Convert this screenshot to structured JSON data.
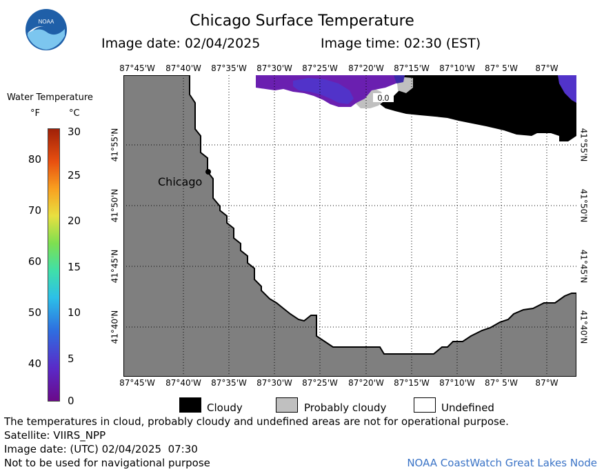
{
  "header": {
    "title": "Chicago Surface Temperature",
    "image_date": "Image date: 02/04/2025",
    "image_time": "Image time: 02:30 (EST)"
  },
  "logo": {
    "text": "NOAA",
    "color_blue": "#1f5fa8",
    "color_light": "#7cc6ef"
  },
  "map": {
    "longitude_labels": [
      "87°45'W",
      "87°40'W",
      "87°35'W",
      "87°30'W",
      "87°25'W",
      "87°20'W",
      "87°15'W",
      "87°10'W",
      "87° 5'W",
      "87°W"
    ],
    "latitude_labels": [
      "41°55'N",
      "41°50'N",
      "41°45'N",
      "41°40'N"
    ],
    "city": "Chicago",
    "temperature_label": "0.0",
    "colors": {
      "land": "#7f7f7f",
      "cloudy": "#000000",
      "probably_cloudy": "#c0c0c0",
      "undefined": "#ffffff",
      "cold_water_1": "#6a1fb0",
      "cold_water_2": "#5133c9"
    }
  },
  "scale": {
    "title": "Water Temperature",
    "unit_f": "°F",
    "unit_c": "°C",
    "fahrenheit_ticks": [
      "80",
      "70",
      "60",
      "50",
      "40"
    ],
    "celsius_ticks": [
      "30",
      "25",
      "20",
      "15",
      "10",
      "5",
      "0"
    ]
  },
  "legend": {
    "cloudy": "Cloudy",
    "probably_cloudy": "Probably cloudy",
    "undefined": "Undefined"
  },
  "footer": {
    "disclaimer": "The temperatures in cloud, probably cloudy and undefined areas are not for operational purpose.",
    "satellite": "Satellite: VIIRS_NPP",
    "image_date_utc": "Image date: (UTC) 02/04/2025  07:30",
    "navigation_warning": "Not to be used for navigational purpose",
    "credit": "NOAA CoastWatch Great Lakes Node"
  }
}
